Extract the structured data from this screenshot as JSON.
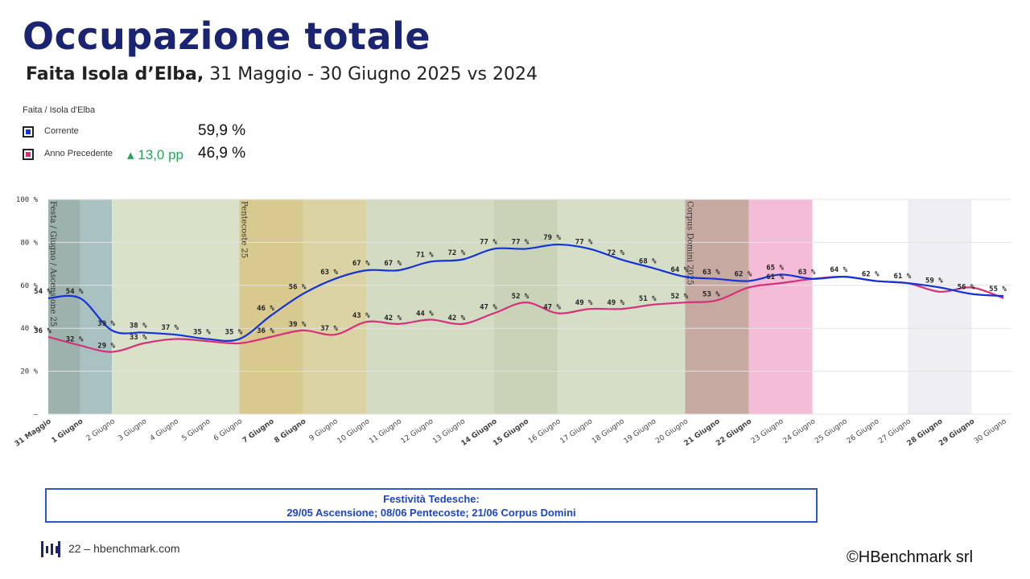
{
  "page": {
    "title": "Occupazione totale",
    "subtitle_bold": "Faita Isola d’Elba,",
    "subtitle_rest": " 31 Maggio - 30 Giugno 2025 vs 2024"
  },
  "kpi": {
    "header": "Faita / Isola d'Elba",
    "current": {
      "label": "Corrente",
      "value": "59,9 %",
      "color": "#1433d6"
    },
    "previous": {
      "label": "Anno Precedente",
      "delta": "13,0 pp",
      "value": "46,9 %",
      "color": "#d6307a"
    }
  },
  "holidays": {
    "title": "Festività Tedesche:",
    "list": "29/05 Ascensione; 08/06 Pentecoste; 21/06 Corpus Domini"
  },
  "footer": {
    "page_link": "22 – hbenchmark.com",
    "copyright": "HBenchmark srl"
  },
  "chart_data": {
    "type": "line",
    "categories": [
      "31 Maggio",
      "1 Giugno",
      "2 Giugno",
      "3 Giugno",
      "4 Giugno",
      "5 Giugno",
      "6 Giugno",
      "7 Giugno",
      "8 Giugno",
      "9 Giugno",
      "10 Giugno",
      "11 Giugno",
      "12 Giugno",
      "13 Giugno",
      "14 Giugno",
      "15 Giugno",
      "16 Giugno",
      "17 Giugno",
      "18 Giugno",
      "19 Giugno",
      "20 Giugno",
      "21 Giugno",
      "22 Giugno",
      "23 Giugno",
      "24 Giugno",
      "25 Giugno",
      "26 Giugno",
      "27 Giugno",
      "28 Giugno",
      "29 Giugno",
      "30 Giugno"
    ],
    "bold_categories": [
      "31 Maggio",
      "1 Giugno",
      "7 Giugno",
      "8 Giugno",
      "14 Giugno",
      "15 Giugno",
      "21 Giugno",
      "22 Giugno",
      "28 Giugno",
      "29 Giugno"
    ],
    "series": [
      {
        "name": "Corrente",
        "color": "#1433d6",
        "values": [
          54,
          54,
          39,
          38,
          37,
          35,
          35,
          46,
          56,
          63,
          67,
          67,
          71,
          72,
          77,
          77,
          79,
          77,
          72,
          68,
          64,
          63,
          62,
          65,
          63,
          64,
          62,
          61,
          59,
          56,
          55
        ]
      },
      {
        "name": "Anno Precedente",
        "color": "#d6307a",
        "values": [
          36,
          32,
          29,
          33,
          35,
          34,
          33,
          36,
          39,
          37,
          43,
          42,
          44,
          42,
          47,
          52,
          47,
          49,
          49,
          51,
          52,
          53,
          59,
          61,
          63,
          64,
          62,
          61,
          57,
          59,
          54
        ]
      }
    ],
    "data_labels": {
      "Corrente": [
        "54 %",
        "54 %",
        "39 %",
        "38 %",
        "37 %",
        "35 %",
        "35 %",
        "46 %",
        "56 %",
        "63 %",
        "67 %",
        "67 %",
        "71 %",
        "72 %",
        "77 %",
        "77 %",
        "79 %",
        "77 %",
        "72 %",
        "68 %",
        "64 %",
        "63 %",
        "62 %",
        "65 %",
        "63 %",
        "64 %",
        "62 %",
        "61 %",
        "59 %",
        "56 %",
        "55 %"
      ],
      "Anno Precedente": [
        "36 %",
        "32 %",
        "29 %",
        "33 %",
        "",
        "",
        "",
        "36 %",
        "39 %",
        "37 %",
        "43 %",
        "42 %",
        "44 %",
        "42 %",
        "47 %",
        "52 %",
        "47 %",
        "49 %",
        "49 %",
        "51 %",
        "52 %",
        "53 %",
        "",
        "61 %",
        "",
        "",
        "",
        "",
        "",
        "",
        ""
      ]
    },
    "y_ticks": [
      "100 %",
      "80 %",
      "60 %",
      "40 %",
      "20 %",
      "–"
    ],
    "ylim": [
      0,
      100
    ],
    "bands": [
      {
        "from": "31 Maggio",
        "to": "1 Giugno",
        "color": "#9db1ad"
      },
      {
        "from": "1 Giugno",
        "to": "2 Giugno",
        "color": "#a9c1c0"
      },
      {
        "from": "2 Giugno",
        "to": "6 Giugno",
        "color": "#d9e2c9"
      },
      {
        "from": "6 Giugno",
        "to": "8 Giugno",
        "color": "#d8c98e"
      },
      {
        "from": "8 Giugno",
        "to": "10 Giugno",
        "color": "#dcd3a4"
      },
      {
        "from": "10 Giugno",
        "to": "14 Giugno",
        "color": "#d3dcc2"
      },
      {
        "from": "14 Giugno",
        "to": "16 Giugno",
        "color": "#c9d3b7"
      },
      {
        "from": "16 Giugno",
        "to": "20 Giugno",
        "color": "#d5dec6"
      },
      {
        "from": "20 Giugno",
        "to": "22 Giugno",
        "color": "#c6aaa1"
      },
      {
        "from": "22 Giugno",
        "to": "24 Giugno",
        "color": "#f4bcd6"
      },
      {
        "from": "27 Giugno",
        "to": "29 Giugno",
        "color": "#eeeef3"
      }
    ],
    "band_annotations": [
      {
        "at": "31 Maggio",
        "text": "Festa / Giugno / Ascensione 25"
      },
      {
        "at": "6 Giugno",
        "text": "Pentecoste 25"
      },
      {
        "at": "20 Giugno",
        "text": "Corpus Domini 2025"
      }
    ],
    "grid": true,
    "legend": "top-left"
  }
}
